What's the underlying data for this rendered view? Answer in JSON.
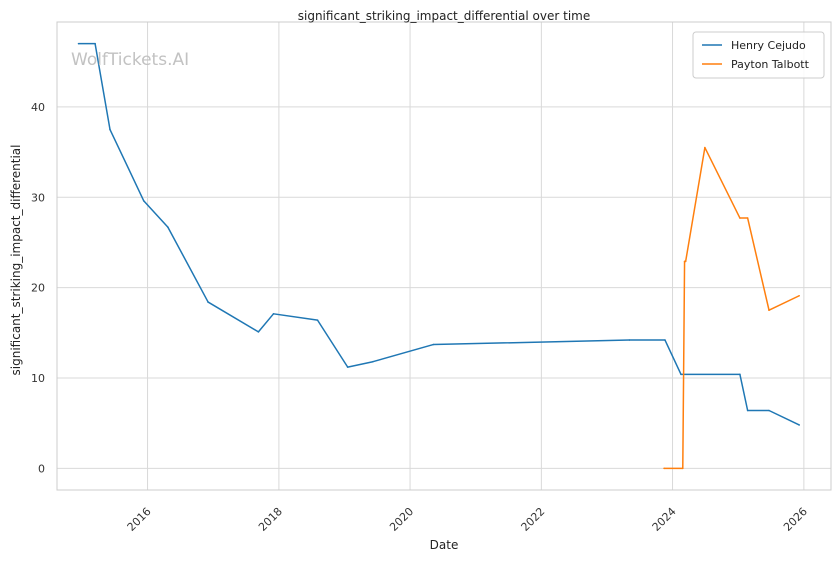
{
  "chart_data": {
    "type": "line",
    "title": "significant_striking_impact_differential over time",
    "xlabel": "Date",
    "ylabel": "significant_striking_impact_differential",
    "watermark": "WolfTickets.AI",
    "grid": true,
    "legend_position": "top-right",
    "xlim": [
      "2014-08-15",
      "2026-06-01"
    ],
    "ylim": [
      -2.4,
      49.4
    ],
    "x_ticks": [
      {
        "value": "2016-01-01",
        "label": "2016"
      },
      {
        "value": "2018-01-01",
        "label": "2018"
      },
      {
        "value": "2020-01-01",
        "label": "2020"
      },
      {
        "value": "2022-01-01",
        "label": "2022"
      },
      {
        "value": "2024-01-01",
        "label": "2024"
      },
      {
        "value": "2026-01-01",
        "label": "2026"
      }
    ],
    "y_ticks": [
      0,
      10,
      20,
      30,
      40
    ],
    "series": [
      {
        "name": "Henry Cejudo",
        "color": "#1f77b4",
        "points": [
          {
            "x": "2014-12-13",
            "y": 47.0
          },
          {
            "x": "2015-03-15",
            "y": 47.0
          },
          {
            "x": "2015-06-06",
            "y": 37.5
          },
          {
            "x": "2015-12-11",
            "y": 29.6
          },
          {
            "x": "2016-04-23",
            "y": 26.7
          },
          {
            "x": "2016-12-03",
            "y": 18.4
          },
          {
            "x": "2017-09-09",
            "y": 15.1
          },
          {
            "x": "2017-12-02",
            "y": 17.1
          },
          {
            "x": "2018-08-04",
            "y": 16.4
          },
          {
            "x": "2019-01-19",
            "y": 11.2
          },
          {
            "x": "2019-06-08",
            "y": 11.8
          },
          {
            "x": "2020-05-09",
            "y": 13.7
          },
          {
            "x": "2023-05-06",
            "y": 14.2
          },
          {
            "x": "2023-11-20",
            "y": 14.2
          },
          {
            "x": "2024-02-17",
            "y": 10.4
          },
          {
            "x": "2025-01-10",
            "y": 10.4
          },
          {
            "x": "2025-02-22",
            "y": 6.4
          },
          {
            "x": "2025-06-21",
            "y": 6.4
          },
          {
            "x": "2025-12-06",
            "y": 4.8
          }
        ]
      },
      {
        "name": "Payton Talbott",
        "color": "#ff7f0e",
        "points": [
          {
            "x": "2023-11-15",
            "y": 0.0
          },
          {
            "x": "2024-02-27",
            "y": 0.0
          },
          {
            "x": "2024-03-08",
            "y": 22.9
          },
          {
            "x": "2024-03-14",
            "y": 22.9
          },
          {
            "x": "2024-06-29",
            "y": 35.5
          },
          {
            "x": "2025-01-10",
            "y": 27.7
          },
          {
            "x": "2025-02-22",
            "y": 27.7
          },
          {
            "x": "2025-06-21",
            "y": 17.5
          },
          {
            "x": "2025-12-06",
            "y": 19.1
          }
        ]
      }
    ]
  }
}
